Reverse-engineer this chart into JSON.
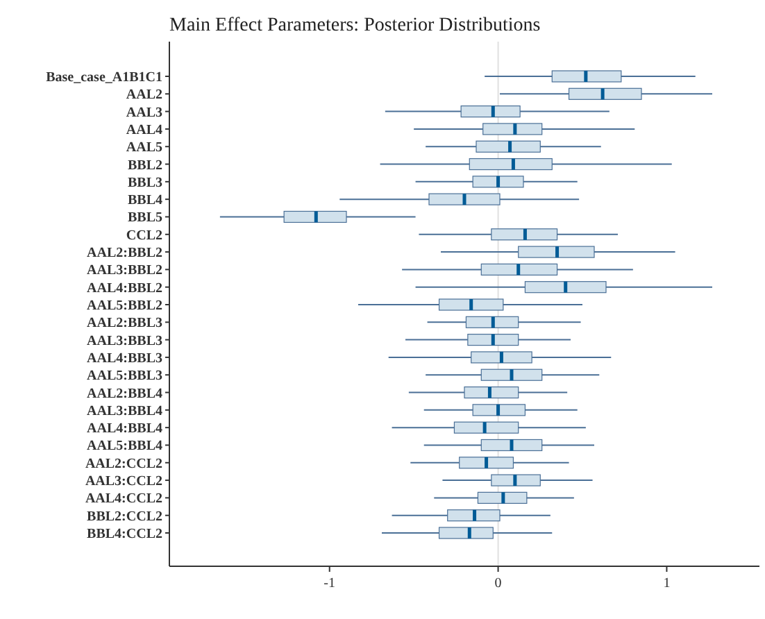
{
  "chart_data": {
    "type": "box",
    "orientation": "horizontal",
    "title": "Main Effect Parameters: Posterior Distributions",
    "categories": [
      "Base_case_A1B1C1",
      "AAL2",
      "AAL3",
      "AAL4",
      "AAL5",
      "BBL2",
      "BBL3",
      "BBL4",
      "BBL5",
      "CCL2",
      "AAL2:BBL2",
      "AAL3:BBL2",
      "AAL4:BBL2",
      "AAL5:BBL2",
      "AAL2:BBL3",
      "AAL3:BBL3",
      "AAL4:BBL3",
      "AAL5:BBL3",
      "AAL2:BBL4",
      "AAL3:BBL4",
      "AAL4:BBL4",
      "AAL5:BBL4",
      "AAL2:CCL2",
      "AAL3:CCL2",
      "AAL4:CCL2",
      "BBL2:CCL2",
      "BBL4:CCL2"
    ],
    "series": [
      {
        "color": "#d1e1ec",
        "boxes": [
          {
            "low": -0.08,
            "q1": 0.32,
            "median": 0.52,
            "q3": 0.73,
            "high": 1.17
          },
          {
            "low": 0.01,
            "q1": 0.42,
            "median": 0.62,
            "q3": 0.85,
            "high": 1.27
          },
          {
            "low": -0.67,
            "q1": -0.22,
            "median": -0.03,
            "q3": 0.13,
            "high": 0.66
          },
          {
            "low": -0.5,
            "q1": -0.09,
            "median": 0.1,
            "q3": 0.26,
            "high": 0.81
          },
          {
            "low": -0.43,
            "q1": -0.13,
            "median": 0.07,
            "q3": 0.25,
            "high": 0.61
          },
          {
            "low": -0.7,
            "q1": -0.17,
            "median": 0.09,
            "q3": 0.32,
            "high": 1.03
          },
          {
            "low": -0.49,
            "q1": -0.15,
            "median": 0,
            "q3": 0.15,
            "high": 0.47
          },
          {
            "low": -0.94,
            "q1": -0.41,
            "median": -0.2,
            "q3": 0.01,
            "high": 0.48
          },
          {
            "low": -1.65,
            "q1": -1.27,
            "median": -1.08,
            "q3": -0.9,
            "high": -0.49
          },
          {
            "low": -0.47,
            "q1": -0.04,
            "median": 0.16,
            "q3": 0.35,
            "high": 0.71
          },
          {
            "low": -0.34,
            "q1": 0.12,
            "median": 0.35,
            "q3": 0.57,
            "high": 1.05
          },
          {
            "low": -0.57,
            "q1": -0.1,
            "median": 0.12,
            "q3": 0.35,
            "high": 0.8
          },
          {
            "low": -0.49,
            "q1": 0.16,
            "median": 0.4,
            "q3": 0.64,
            "high": 1.27
          },
          {
            "low": -0.83,
            "q1": -0.35,
            "median": -0.16,
            "q3": 0.03,
            "high": 0.5
          },
          {
            "low": -0.42,
            "q1": -0.19,
            "median": -0.03,
            "q3": 0.12,
            "high": 0.49
          },
          {
            "low": -0.55,
            "q1": -0.18,
            "median": -0.03,
            "q3": 0.12,
            "high": 0.43
          },
          {
            "low": -0.65,
            "q1": -0.16,
            "median": 0.02,
            "q3": 0.2,
            "high": 0.67
          },
          {
            "low": -0.43,
            "q1": -0.1,
            "median": 0.08,
            "q3": 0.26,
            "high": 0.6
          },
          {
            "low": -0.53,
            "q1": -0.2,
            "median": -0.05,
            "q3": 0.12,
            "high": 0.41
          },
          {
            "low": -0.44,
            "q1": -0.15,
            "median": 0,
            "q3": 0.16,
            "high": 0.47
          },
          {
            "low": -0.63,
            "q1": -0.26,
            "median": -0.08,
            "q3": 0.12,
            "high": 0.52
          },
          {
            "low": -0.44,
            "q1": -0.1,
            "median": 0.08,
            "q3": 0.26,
            "high": 0.57
          },
          {
            "low": -0.52,
            "q1": -0.23,
            "median": -0.07,
            "q3": 0.09,
            "high": 0.42
          },
          {
            "low": -0.33,
            "q1": -0.04,
            "median": 0.1,
            "q3": 0.25,
            "high": 0.56
          },
          {
            "low": -0.38,
            "q1": -0.12,
            "median": 0.03,
            "q3": 0.17,
            "high": 0.45
          },
          {
            "low": -0.63,
            "q1": -0.3,
            "median": -0.14,
            "q3": 0.01,
            "high": 0.31
          },
          {
            "low": -0.69,
            "q1": -0.35,
            "median": -0.17,
            "q3": -0.03,
            "high": 0.32
          }
        ]
      }
    ],
    "xlim": [
      -1.95,
      1.55
    ],
    "xticks": [
      -1,
      0,
      1
    ],
    "ref_lines": [
      {
        "axis": "x",
        "value": 0,
        "color": "#e0e0e0"
      }
    ]
  }
}
